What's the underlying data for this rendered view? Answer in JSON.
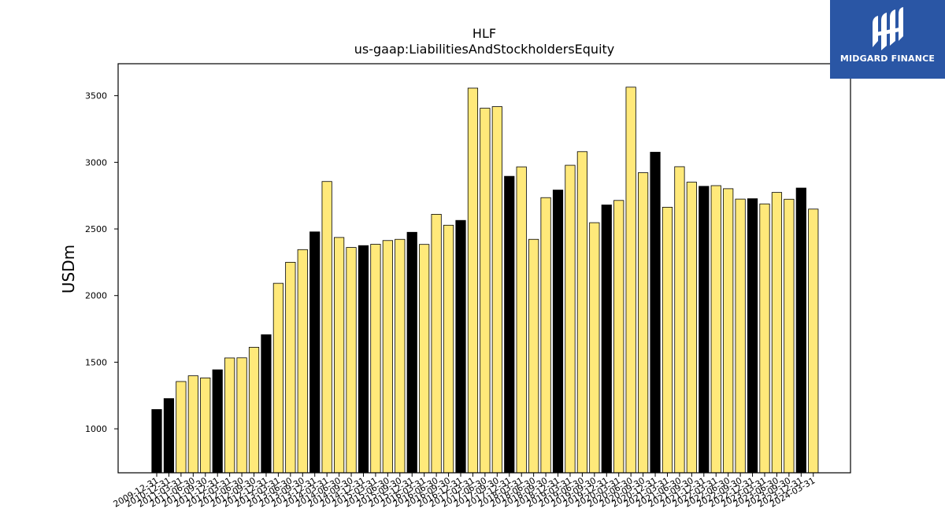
{
  "logo": {
    "text": "MIDGARD FINANCE"
  },
  "chart_data": {
    "type": "bar",
    "title": "HLF",
    "subtitle": "us-gaap:LiabilitiesAndStockholdersEquity",
    "xlabel": "",
    "ylabel": "USDm",
    "ylim": [
      670,
      3740
    ],
    "yticks": [
      1000,
      1500,
      2000,
      2500,
      3000,
      3500
    ],
    "colors": {
      "annual": "#000000",
      "quarter": "#ffe97a",
      "edge": "#000000"
    },
    "categories": [
      "2009-12-31",
      "2010-12-31",
      "2011-03-31",
      "2011-06-30",
      "2011-09-30",
      "2011-12-31",
      "2012-03-31",
      "2012-06-30",
      "2012-09-30",
      "2012-12-31",
      "2013-03-31",
      "2013-06-30",
      "2013-09-30",
      "2013-12-31",
      "2014-03-31",
      "2014-06-30",
      "2014-09-30",
      "2014-12-31",
      "2015-03-31",
      "2015-06-30",
      "2015-09-30",
      "2015-12-31",
      "2016-03-31",
      "2016-06-30",
      "2016-09-30",
      "2016-12-31",
      "2017-03-31",
      "2017-06-30",
      "2017-09-30",
      "2017-12-31",
      "2018-03-31",
      "2018-06-30",
      "2018-09-30",
      "2018-12-31",
      "2019-03-31",
      "2019-06-30",
      "2019-09-30",
      "2019-12-31",
      "2020-03-31",
      "2020-06-30",
      "2020-09-30",
      "2020-12-31",
      "2021-03-31",
      "2021-06-30",
      "2021-09-30",
      "2021-12-31",
      "2022-03-31",
      "2022-06-30",
      "2022-09-30",
      "2022-12-31",
      "2023-03-31",
      "2023-06-30",
      "2023-09-30",
      "2023-12-31",
      "2024-03-31"
    ],
    "values": [
      1145,
      1227,
      1355,
      1398,
      1382,
      1443,
      1532,
      1533,
      1612,
      1706,
      2092,
      2250,
      2345,
      2478,
      2856,
      2436,
      2361,
      2375,
      2385,
      2413,
      2422,
      2475,
      2384,
      2610,
      2528,
      2564,
      3557,
      3406,
      3418,
      2895,
      2966,
      2422,
      2735,
      2792,
      2978,
      3080,
      2547,
      2680,
      2714,
      3564,
      2922,
      3076,
      2663,
      2967,
      2851,
      2820,
      2825,
      2802,
      2724,
      2727,
      2688,
      2774,
      2723,
      2807,
      2649
    ],
    "annual": [
      true,
      true,
      false,
      false,
      false,
      true,
      false,
      false,
      false,
      true,
      false,
      false,
      false,
      true,
      false,
      false,
      false,
      true,
      false,
      false,
      false,
      true,
      false,
      false,
      false,
      true,
      false,
      false,
      false,
      true,
      false,
      false,
      false,
      true,
      false,
      false,
      false,
      true,
      false,
      false,
      false,
      true,
      false,
      false,
      false,
      true,
      false,
      false,
      false,
      true,
      false,
      false,
      false,
      true,
      false
    ],
    "grid": false,
    "legend": "none"
  }
}
